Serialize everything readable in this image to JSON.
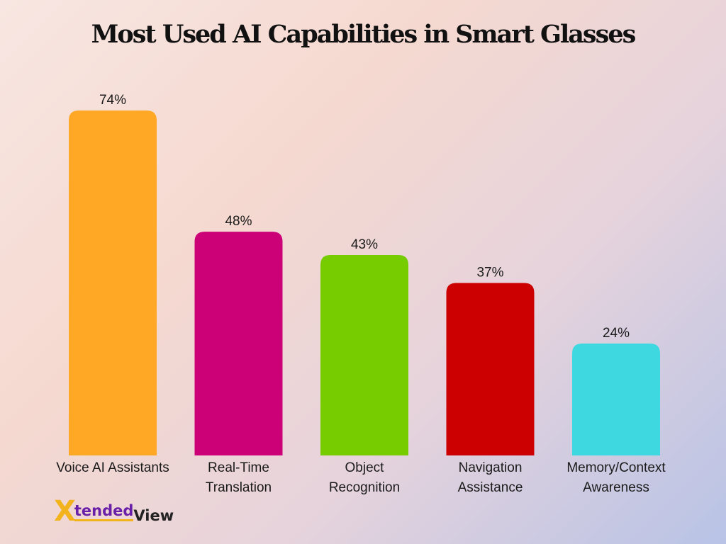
{
  "chart_data": {
    "type": "bar",
    "title": "Most Used AI Capabilities in Smart Glasses",
    "categories": [
      [
        "Voice AI Assistants"
      ],
      [
        "Real-Time",
        "Translation"
      ],
      [
        "Object",
        "Recognition"
      ],
      [
        "Navigation",
        "Assistance"
      ],
      [
        "Memory/Context",
        "Awareness"
      ]
    ],
    "values": [
      74,
      48,
      43,
      37,
      24
    ],
    "value_labels": [
      "74%",
      "48%",
      "43%",
      "37%",
      "24%"
    ],
    "colors": [
      "#ffa826",
      "#cc0077",
      "#77cc00",
      "#cc0000",
      "#3ed9e0"
    ],
    "ylim": [
      0,
      74
    ],
    "grid": false,
    "legend": "none"
  },
  "logo": {
    "brand_x": "X",
    "brand_tended": "tended",
    "brand_view": "View",
    "colors": {
      "purple": "#6a1fa8",
      "gold": "#f2b31c"
    }
  }
}
